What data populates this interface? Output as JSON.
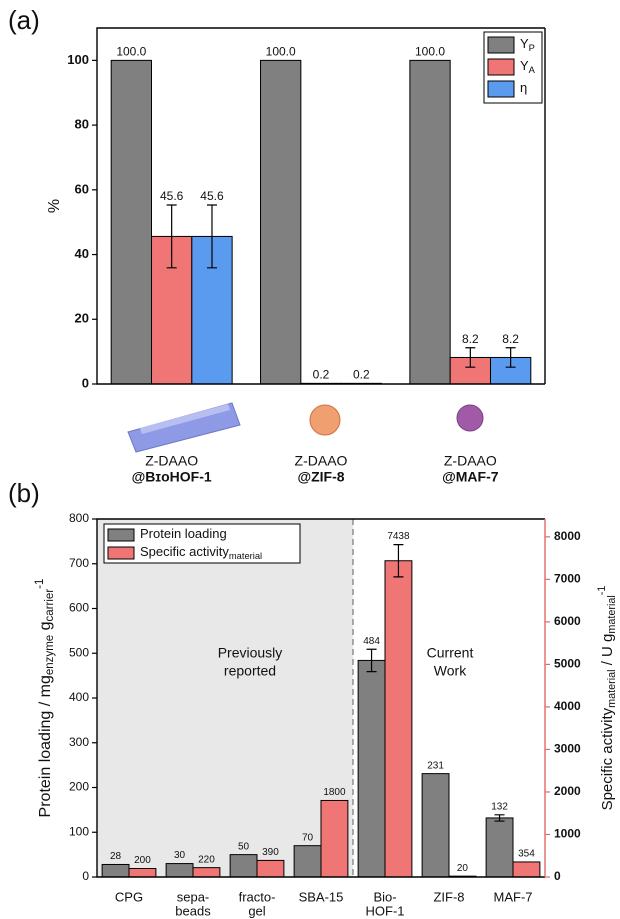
{
  "chart_data": [
    {
      "type": "bar",
      "panel_label": "(a)",
      "ylabel": "%",
      "categories": [
        [
          "Z-DAAO",
          "@BɪᴏHOF-1"
        ],
        [
          "Z-DAAO",
          "@ZIF-8"
        ],
        [
          "Z-DAAO",
          "@MAF-7"
        ]
      ],
      "category_second_line_bold": true,
      "series": [
        {
          "name": "Y",
          "subscript": "P",
          "color": "#808080",
          "values": [
            100,
            100,
            100
          ],
          "value_labels": [
            "100.0",
            "100.0",
            "100.0"
          ]
        },
        {
          "name": "Y",
          "subscript": "A",
          "color": "#f07575",
          "values": [
            45.6,
            0.2,
            8.2
          ],
          "errors": [
            9.7,
            null,
            3
          ]
        },
        {
          "name": "η",
          "color": "#5b9bef",
          "values": [
            45.6,
            0.2,
            8.2
          ],
          "errors": [
            9.7,
            null,
            3
          ]
        }
      ],
      "ylim": [
        0,
        110
      ],
      "yticks": [
        0,
        20,
        40,
        60,
        80,
        100
      ],
      "legend": "upper right"
    },
    {
      "type": "bar",
      "panel_label": "(b)",
      "ylabel": [
        {
          "text": "Protein loading / mg"
        },
        {
          "text": "enzyme",
          "shift": "sub"
        },
        {
          "text": " g"
        },
        {
          "text": "carrier",
          "shift": "sub"
        },
        {
          "text": "-1",
          "shift": "sup"
        }
      ],
      "y2label": [
        {
          "text": "Specific activity"
        },
        {
          "text": "material",
          "shift": "sub"
        },
        {
          "text": " / U g"
        },
        {
          "text": "material",
          "shift": "sub"
        },
        {
          "text": "-1",
          "shift": "sup"
        }
      ],
      "categories": [
        [
          "CPG"
        ],
        [
          "sepa-",
          "beads"
        ],
        [
          "fracto-",
          "gel"
        ],
        [
          "SBA-15"
        ],
        [
          "Bio-",
          "HOF-1"
        ],
        [
          "ZIF-8"
        ],
        [
          "MAF-7"
        ]
      ],
      "series": [
        {
          "name": "Protein loading",
          "color": "#808080",
          "values": [
            28,
            30,
            50,
            70,
            484,
            231,
            132
          ],
          "errors": [
            null,
            null,
            null,
            null,
            25,
            null,
            7
          ]
        },
        {
          "name": "Specific activity",
          "subscript": "material",
          "color": "#f07575",
          "axis": "y2",
          "values": [
            200,
            220,
            390,
            1800,
            7438,
            20,
            354
          ],
          "errors": [
            null,
            null,
            null,
            null,
            380,
            null,
            null
          ]
        }
      ],
      "ylim": [
        0,
        800
      ],
      "yticks": [
        0,
        100,
        200,
        300,
        400,
        500,
        600,
        700,
        800
      ],
      "y2lim": [
        0,
        8420
      ],
      "y2ticks": [
        0,
        1000,
        2000,
        3000,
        4000,
        5000,
        6000,
        7000,
        8000
      ],
      "y2color": "#e06a6a",
      "annotations": [
        [
          "Previously",
          "reported"
        ],
        [
          "Current",
          "Work"
        ]
      ],
      "legend": "upper left"
    }
  ]
}
